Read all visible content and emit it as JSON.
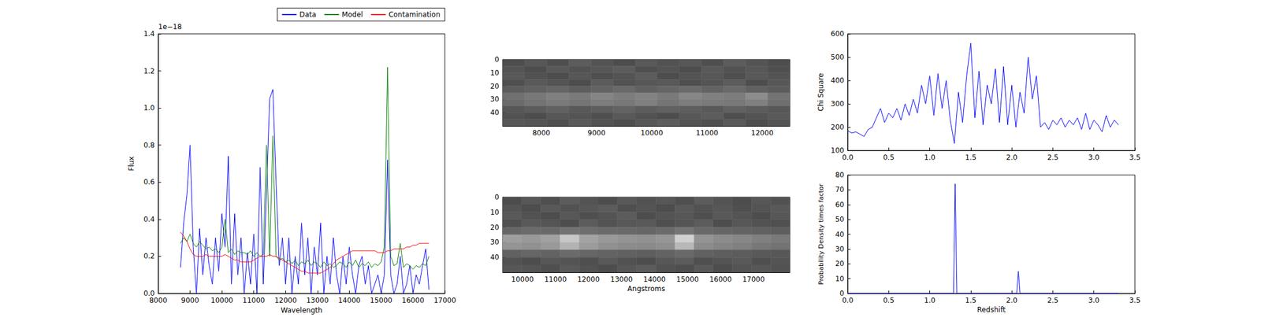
{
  "chart_data": [
    {
      "type": "line",
      "xlabel": "Wavelength",
      "ylabel": "Flux",
      "annotation": "1e−18",
      "x": [
        8700,
        8800,
        8900,
        9000,
        9100,
        9200,
        9300,
        9400,
        9500,
        9600,
        9700,
        9800,
        9900,
        10000,
        10100,
        10200,
        10300,
        10400,
        10500,
        10600,
        10700,
        10800,
        10900,
        11000,
        11100,
        11200,
        11300,
        11400,
        11500,
        11600,
        11700,
        11800,
        11900,
        12000,
        12100,
        12200,
        12300,
        12400,
        12500,
        12600,
        12700,
        12800,
        12900,
        13000,
        13100,
        13200,
        13300,
        13400,
        13500,
        13600,
        13700,
        13800,
        13900,
        14000,
        14100,
        14200,
        14300,
        14400,
        14500,
        14600,
        14700,
        14800,
        14900,
        15000,
        15100,
        15200,
        15300,
        15400,
        15500,
        15600,
        15700,
        15800,
        15900,
        16000,
        16100,
        16200,
        16300,
        16400,
        16500
      ],
      "series": [
        {
          "name": "Data",
          "color": "#0000ff",
          "values": [
            0.14,
            0.38,
            0.53,
            0.8,
            0.25,
            0.0,
            0.35,
            0.1,
            0.3,
            0.15,
            0.05,
            0.3,
            0.12,
            0.43,
            0.25,
            0.74,
            0.05,
            0.43,
            0.1,
            0.3,
            0.0,
            0.22,
            0.05,
            0.32,
            0.0,
            0.68,
            0.05,
            0.55,
            1.05,
            1.1,
            0.6,
            0.15,
            0.3,
            0.05,
            0.3,
            0.0,
            0.2,
            0.05,
            0.38,
            0.1,
            0.3,
            0.0,
            0.25,
            0.1,
            0.38,
            0.0,
            0.2,
            0.05,
            0.3,
            0.1,
            0.0,
            0.2,
            0.05,
            0.25,
            0.1,
            0.0,
            0.15,
            0.2,
            0.05,
            0.15,
            0.0,
            0.05,
            0.1,
            0.0,
            0.1,
            0.72,
            0.1,
            0.0,
            0.05,
            0.2,
            0.0,
            0.05,
            0.15,
            0.0,
            0.1,
            0.05,
            0.15,
            0.24,
            0.02
          ]
        },
        {
          "name": "Model",
          "color": "#008000",
          "values": [
            0.27,
            0.3,
            0.28,
            0.32,
            0.27,
            0.25,
            0.28,
            0.26,
            0.24,
            0.25,
            0.23,
            0.24,
            0.22,
            0.25,
            0.4,
            0.22,
            0.24,
            0.21,
            0.23,
            0.22,
            0.22,
            0.21,
            0.23,
            0.2,
            0.22,
            0.2,
            0.21,
            0.8,
            0.2,
            0.85,
            0.2,
            0.18,
            0.19,
            0.17,
            0.18,
            0.16,
            0.18,
            0.15,
            0.17,
            0.16,
            0.18,
            0.15,
            0.17,
            0.16,
            0.14,
            0.17,
            0.15,
            0.16,
            0.14,
            0.15,
            0.17,
            0.16,
            0.14,
            0.17,
            0.15,
            0.18,
            0.14,
            0.16,
            0.15,
            0.17,
            0.14,
            0.16,
            0.15,
            0.17,
            0.25,
            1.22,
            0.2,
            0.15,
            0.16,
            0.27,
            0.14,
            0.16,
            0.15,
            0.13,
            0.15,
            0.14,
            0.16,
            0.15,
            0.2
          ]
        },
        {
          "name": "Contamination",
          "color": "#ff0000",
          "values": [
            0.33,
            0.31,
            0.28,
            0.24,
            0.21,
            0.2,
            0.2,
            0.2,
            0.21,
            0.2,
            0.2,
            0.2,
            0.2,
            0.2,
            0.21,
            0.2,
            0.19,
            0.18,
            0.18,
            0.17,
            0.17,
            0.17,
            0.17,
            0.18,
            0.19,
            0.2,
            0.2,
            0.2,
            0.21,
            0.2,
            0.2,
            0.19,
            0.18,
            0.17,
            0.16,
            0.15,
            0.14,
            0.13,
            0.12,
            0.12,
            0.11,
            0.11,
            0.11,
            0.11,
            0.11,
            0.12,
            0.13,
            0.14,
            0.16,
            0.18,
            0.19,
            0.2,
            0.21,
            0.22,
            0.23,
            0.23,
            0.23,
            0.23,
            0.23,
            0.23,
            0.23,
            0.23,
            0.22,
            0.22,
            0.22,
            0.23,
            0.23,
            0.24,
            0.24,
            0.24,
            0.24,
            0.25,
            0.25,
            0.26,
            0.26,
            0.27,
            0.27,
            0.27,
            0.27
          ]
        }
      ],
      "xlim": [
        8000,
        17000
      ],
      "xticks": [
        8000,
        9000,
        10000,
        11000,
        12000,
        13000,
        14000,
        15000,
        16000,
        17000
      ],
      "ylim": [
        0,
        1.4
      ],
      "yticks": [
        {
          "value": 0,
          "label": "0.0"
        },
        0.2,
        0.4,
        0.6,
        0.8,
        {
          "value": 1,
          "label": "1.0"
        },
        1.2,
        1.4
      ],
      "legend": "upper right",
      "grid": false
    },
    {
      "type": "heatmap",
      "x": [
        7500,
        7900,
        8300,
        8700,
        9100,
        9500,
        9900,
        10300,
        10700,
        11100,
        11500,
        11900,
        12300
      ],
      "y": [
        2.5,
        7.5,
        12.5,
        17.5,
        22.5,
        27.5,
        32.5,
        37.5,
        42.5,
        47.5
      ],
      "cells": [
        [
          0.3,
          0.34,
          0.31,
          0.36,
          0.33,
          0.3,
          0.35,
          0.32,
          0.34,
          0.31,
          0.36,
          0.33,
          0.3
        ],
        [
          0.33,
          0.3,
          0.35,
          0.32,
          0.34,
          0.36,
          0.31,
          0.33,
          0.3,
          0.35,
          0.32,
          0.34,
          0.31
        ],
        [
          0.35,
          0.32,
          0.3,
          0.34,
          0.31,
          0.33,
          0.36,
          0.3,
          0.33,
          0.34,
          0.31,
          0.35,
          0.33
        ],
        [
          0.31,
          0.35,
          0.33,
          0.3,
          0.36,
          0.32,
          0.34,
          0.35,
          0.31,
          0.33,
          0.36,
          0.3,
          0.34
        ],
        [
          0.36,
          0.38,
          0.4,
          0.37,
          0.39,
          0.41,
          0.38,
          0.4,
          0.42,
          0.39,
          0.41,
          0.38,
          0.36
        ],
        [
          0.44,
          0.47,
          0.5,
          0.48,
          0.52,
          0.49,
          0.51,
          0.48,
          0.53,
          0.5,
          0.49,
          0.55,
          0.45
        ],
        [
          0.42,
          0.45,
          0.48,
          0.46,
          0.49,
          0.47,
          0.5,
          0.46,
          0.49,
          0.48,
          0.47,
          0.5,
          0.43
        ],
        [
          0.34,
          0.36,
          0.38,
          0.35,
          0.37,
          0.39,
          0.36,
          0.38,
          0.37,
          0.35,
          0.38,
          0.36,
          0.34
        ],
        [
          0.32,
          0.3,
          0.34,
          0.33,
          0.31,
          0.35,
          0.32,
          0.3,
          0.34,
          0.36,
          0.31,
          0.33,
          0.35
        ],
        [
          0.34,
          0.33,
          0.31,
          0.35,
          0.32,
          0.3,
          0.34,
          0.36,
          0.32,
          0.31,
          0.35,
          0.3,
          0.33
        ]
      ],
      "xlim": [
        7300,
        12500
      ],
      "xticks": [
        8000,
        9000,
        10000,
        11000,
        12000
      ],
      "ylim": [
        0,
        50
      ],
      "yticks": [
        0,
        10,
        20,
        30,
        40
      ],
      "grid": false
    },
    {
      "type": "heatmap",
      "xlabel": "Angstroms",
      "x": [
        9690,
        10270,
        10850,
        11430,
        12010,
        12590,
        13170,
        13750,
        14330,
        14910,
        15490,
        16070,
        16650,
        17230,
        17810
      ],
      "y": [
        2.5,
        7.5,
        12.5,
        17.5,
        22.5,
        27.5,
        32.5,
        37.5,
        42.5,
        47.5
      ],
      "cells": [
        [
          0.3,
          0.34,
          0.31,
          0.36,
          0.33,
          0.3,
          0.35,
          0.32,
          0.34,
          0.31,
          0.36,
          0.33,
          0.3,
          0.34,
          0.32
        ],
        [
          0.33,
          0.3,
          0.35,
          0.32,
          0.34,
          0.36,
          0.31,
          0.33,
          0.3,
          0.35,
          0.32,
          0.34,
          0.31,
          0.33,
          0.35
        ],
        [
          0.35,
          0.32,
          0.3,
          0.34,
          0.31,
          0.33,
          0.36,
          0.3,
          0.33,
          0.34,
          0.31,
          0.35,
          0.33,
          0.3,
          0.34
        ],
        [
          0.31,
          0.35,
          0.33,
          0.3,
          0.36,
          0.32,
          0.34,
          0.35,
          0.31,
          0.33,
          0.36,
          0.3,
          0.34,
          0.32,
          0.31
        ],
        [
          0.4,
          0.42,
          0.41,
          0.45,
          0.43,
          0.42,
          0.41,
          0.4,
          0.42,
          0.46,
          0.41,
          0.4,
          0.39,
          0.38,
          0.37
        ],
        [
          0.62,
          0.6,
          0.63,
          0.78,
          0.64,
          0.6,
          0.58,
          0.57,
          0.59,
          0.82,
          0.58,
          0.55,
          0.53,
          0.5,
          0.48
        ],
        [
          0.58,
          0.57,
          0.6,
          0.7,
          0.61,
          0.57,
          0.55,
          0.54,
          0.56,
          0.72,
          0.55,
          0.52,
          0.5,
          0.47,
          0.45
        ],
        [
          0.38,
          0.4,
          0.39,
          0.42,
          0.4,
          0.39,
          0.38,
          0.37,
          0.39,
          0.41,
          0.38,
          0.37,
          0.36,
          0.35,
          0.34
        ],
        [
          0.32,
          0.3,
          0.34,
          0.33,
          0.31,
          0.35,
          0.32,
          0.3,
          0.34,
          0.36,
          0.31,
          0.33,
          0.35,
          0.31,
          0.33
        ],
        [
          0.34,
          0.33,
          0.31,
          0.35,
          0.32,
          0.3,
          0.34,
          0.36,
          0.32,
          0.31,
          0.35,
          0.3,
          0.33,
          0.34,
          0.32
        ]
      ],
      "xlim": [
        9400,
        18100
      ],
      "xticks": [
        10000,
        11000,
        12000,
        13000,
        14000,
        15000,
        16000,
        17000
      ],
      "ylim": [
        0,
        50
      ],
      "yticks": [
        0,
        10,
        20,
        30,
        40
      ],
      "grid": false
    },
    {
      "type": "line",
      "ylabel": "Chi Square",
      "color": "#0000ff",
      "x": [
        0,
        0.05,
        0.1,
        0.15,
        0.2,
        0.25,
        0.3,
        0.35,
        0.4,
        0.45,
        0.5,
        0.55,
        0.6,
        0.65,
        0.7,
        0.75,
        0.8,
        0.85,
        0.9,
        0.95,
        1.0,
        1.05,
        1.1,
        1.15,
        1.2,
        1.25,
        1.3,
        1.35,
        1.4,
        1.45,
        1.5,
        1.55,
        1.6,
        1.65,
        1.7,
        1.75,
        1.8,
        1.85,
        1.9,
        1.95,
        2.0,
        2.05,
        2.1,
        2.15,
        2.2,
        2.25,
        2.3,
        2.35,
        2.4,
        2.45,
        2.5,
        2.55,
        2.6,
        2.65,
        2.7,
        2.75,
        2.8,
        2.85,
        2.9,
        2.95,
        3.0,
        3.05,
        3.1,
        3.15,
        3.2,
        3.25,
        3.3
      ],
      "values": [
        185,
        175,
        180,
        170,
        160,
        190,
        200,
        240,
        280,
        220,
        260,
        240,
        280,
        230,
        300,
        250,
        320,
        260,
        380,
        300,
        420,
        250,
        430,
        280,
        400,
        230,
        130,
        350,
        220,
        420,
        560,
        240,
        440,
        210,
        380,
        300,
        450,
        220,
        460,
        210,
        380,
        200,
        350,
        260,
        500,
        320,
        420,
        200,
        220,
        190,
        230,
        210,
        240,
        200,
        230,
        210,
        240,
        190,
        260,
        190,
        230,
        210,
        180,
        250,
        200,
        230,
        210
      ],
      "xlim": [
        0,
        3.5
      ],
      "xticks": [
        {
          "value": 0,
          "label": "0.0"
        },
        0.5,
        {
          "value": 1,
          "label": "1.0"
        },
        1.5,
        {
          "value": 2,
          "label": "2.0"
        },
        2.5,
        {
          "value": 3,
          "label": "3.0"
        },
        3.5
      ],
      "ylim": [
        100,
        600
      ],
      "yticks": [
        100,
        200,
        300,
        400,
        500,
        600
      ],
      "grid": false
    },
    {
      "type": "line",
      "xlabel": "Redshift",
      "ylabel": "Probability Density times factor",
      "color": "#0000ff",
      "x": [
        0,
        1.29,
        1.31,
        1.33,
        2.06,
        2.08,
        2.1,
        3.3
      ],
      "values": [
        0,
        0,
        74,
        0,
        0,
        15,
        0,
        0
      ],
      "xlim": [
        0,
        3.5
      ],
      "xticks": [
        {
          "value": 0,
          "label": "0.0"
        },
        0.5,
        {
          "value": 1,
          "label": "1.0"
        },
        1.5,
        {
          "value": 2,
          "label": "2.0"
        },
        2.5,
        {
          "value": 3,
          "label": "3.0"
        },
        3.5
      ],
      "ylim": [
        0,
        80
      ],
      "yticks": [
        0,
        10,
        20,
        30,
        40,
        50,
        60,
        70,
        80
      ],
      "grid": false
    }
  ]
}
